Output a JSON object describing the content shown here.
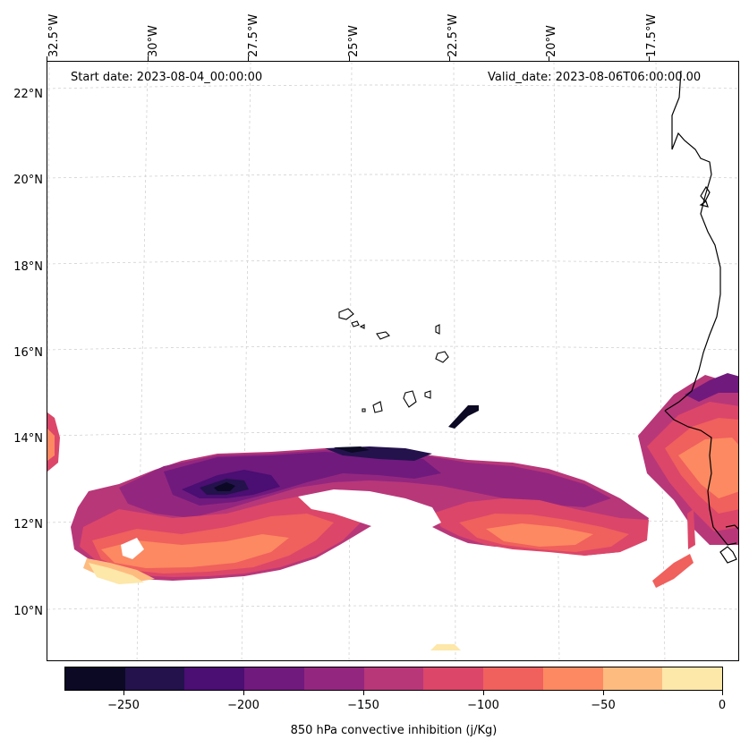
{
  "map": {
    "start_date": "Start date: 2023-08-04_00:00:00",
    "valid_date": "Valid_date: 2023-08-06T06:00:00.00",
    "lon_labels": [
      "32.5°W",
      "30°W",
      "27.5°W",
      "25°W",
      "22.5°W",
      "20°W",
      "17.5°W"
    ],
    "lat_labels": [
      "22°N",
      "20°N",
      "18°N",
      "16°N",
      "14°N",
      "12°N",
      "10°N"
    ],
    "extent": {
      "lon": [
        -32.8,
        -15.5
      ],
      "lat": [
        8.9,
        22.8
      ]
    },
    "gridlines": true,
    "field_name": "850 hPa convective inhibition",
    "coastline_color": "#000000"
  },
  "colorbar": {
    "label": "850 hPa convective inhibition (j/Kg)",
    "ticks": [
      "−250",
      "−200",
      "−150",
      "−100",
      "−50",
      "0"
    ],
    "levels": [
      -275,
      -250,
      -225,
      -200,
      -175,
      -150,
      -125,
      -100,
      -75,
      -50,
      -25,
      0
    ],
    "colors": [
      "#0b0924",
      "#23124c",
      "#4b0e72",
      "#701a7e",
      "#93277f",
      "#b83779",
      "#dc4669",
      "#f0605d",
      "#fc8961",
      "#febb80",
      "#fde7a9"
    ]
  }
}
